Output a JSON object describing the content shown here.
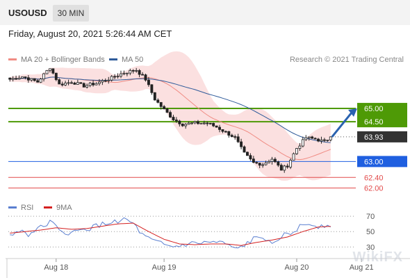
{
  "header": {
    "symbol": "USOUSD",
    "timeframe": "30 MIN"
  },
  "datetime": "Friday, August 20, 2021 5:26:44 AM CET",
  "legend": {
    "ma20": {
      "label": "MA 20 + Bollinger Bands",
      "color": "#f08c84"
    },
    "ma50": {
      "label": "MA 50",
      "color": "#2f5b9a"
    },
    "credit": "Research © 2021 Trading Central"
  },
  "rsi_legend": {
    "rsi": {
      "label": "RSI",
      "color": "#5a7fd0"
    },
    "ma9": {
      "label": "9MA",
      "color": "#d42020"
    }
  },
  "watermark": "WikiFX",
  "chart_data": [
    {
      "type": "candlestick",
      "ylim": [
        61.7,
        66.6
      ],
      "x_ticks": [
        "Aug 18",
        "Aug 19",
        "Aug 20",
        "Aug 21"
      ],
      "levels": [
        {
          "value": 65.0,
          "label": "65.00",
          "kind": "resistance",
          "color": "#4e9a06"
        },
        {
          "value": 64.5,
          "label": "64.50",
          "kind": "resistance",
          "color": "#4e9a06"
        },
        {
          "value": 63.93,
          "label": "63.93",
          "kind": "last-price",
          "color": "#333333"
        },
        {
          "value": 63.0,
          "label": "63.00",
          "kind": "pivot",
          "color": "#1f5fe0"
        },
        {
          "value": 62.4,
          "label": "62.40",
          "kind": "support",
          "color": "#e24a4a"
        },
        {
          "value": 62.0,
          "label": "62.00",
          "kind": "support",
          "color": "#e24a4a"
        }
      ],
      "anchors": [
        [
          0,
          66.1
        ],
        [
          4,
          66.2
        ],
        [
          9,
          66.0
        ],
        [
          13,
          66.55
        ],
        [
          16,
          65.9
        ],
        [
          20,
          66.0
        ],
        [
          24,
          65.85
        ],
        [
          28,
          65.95
        ],
        [
          33,
          66.15
        ],
        [
          37,
          66.35
        ],
        [
          41,
          66.45
        ],
        [
          44,
          66.1
        ],
        [
          47,
          65.35
        ],
        [
          50,
          64.95
        ],
        [
          53,
          64.6
        ],
        [
          56,
          64.4
        ],
        [
          60,
          64.45
        ],
        [
          64,
          64.45
        ],
        [
          67,
          64.3
        ],
        [
          70,
          64.1
        ],
        [
          73,
          63.9
        ],
        [
          76,
          63.3
        ],
        [
          79,
          62.95
        ],
        [
          82,
          62.9
        ],
        [
          85,
          63.1
        ],
        [
          88,
          62.7
        ],
        [
          90,
          62.85
        ],
        [
          93,
          63.5
        ],
        [
          96,
          63.9
        ],
        [
          99,
          63.85
        ],
        [
          102,
          63.75
        ],
        [
          104,
          63.93
        ]
      ],
      "projection": {
        "from": 63.93,
        "to": 65.0
      }
    },
    {
      "type": "line",
      "title": "RSI",
      "y_ticks": [
        70,
        50,
        30
      ],
      "ylim": [
        15,
        80
      ],
      "series": [
        {
          "name": "RSI",
          "color": "#5a7fd0",
          "anchors": [
            [
              0,
              44
            ],
            [
              3,
              52
            ],
            [
              6,
              47
            ],
            [
              10,
              55
            ],
            [
              13,
              64
            ],
            [
              16,
              50
            ],
            [
              20,
              48
            ],
            [
              24,
              52
            ],
            [
              28,
              57
            ],
            [
              33,
              62
            ],
            [
              37,
              66
            ],
            [
              40,
              60
            ],
            [
              43,
              45
            ],
            [
              46,
              38
            ],
            [
              49,
              34
            ],
            [
              52,
              30
            ],
            [
              55,
              31
            ],
            [
              58,
              34
            ],
            [
              62,
              35
            ],
            [
              66,
              36
            ],
            [
              70,
              34
            ],
            [
              73,
              26
            ],
            [
              76,
              32
            ],
            [
              79,
              40
            ],
            [
              82,
              42
            ],
            [
              85,
              38
            ],
            [
              88,
              44
            ],
            [
              91,
              47
            ],
            [
              94,
              56
            ],
            [
              97,
              60
            ],
            [
              100,
              57
            ],
            [
              103,
              59
            ],
            [
              105,
              58
            ]
          ]
        },
        {
          "name": "9MA",
          "color": "#d42020",
          "anchors": [
            [
              0,
              48
            ],
            [
              5,
              50
            ],
            [
              10,
              52
            ],
            [
              15,
              55
            ],
            [
              20,
              53
            ],
            [
              25,
              54
            ],
            [
              30,
              57
            ],
            [
              35,
              60
            ],
            [
              40,
              61
            ],
            [
              45,
              50
            ],
            [
              50,
              40
            ],
            [
              55,
              34
            ],
            [
              60,
              33
            ],
            [
              65,
              34
            ],
            [
              70,
              34
            ],
            [
              75,
              32
            ],
            [
              80,
              36
            ],
            [
              85,
              39
            ],
            [
              90,
              43
            ],
            [
              95,
              50
            ],
            [
              100,
              56
            ],
            [
              105,
              57
            ]
          ]
        }
      ]
    }
  ]
}
